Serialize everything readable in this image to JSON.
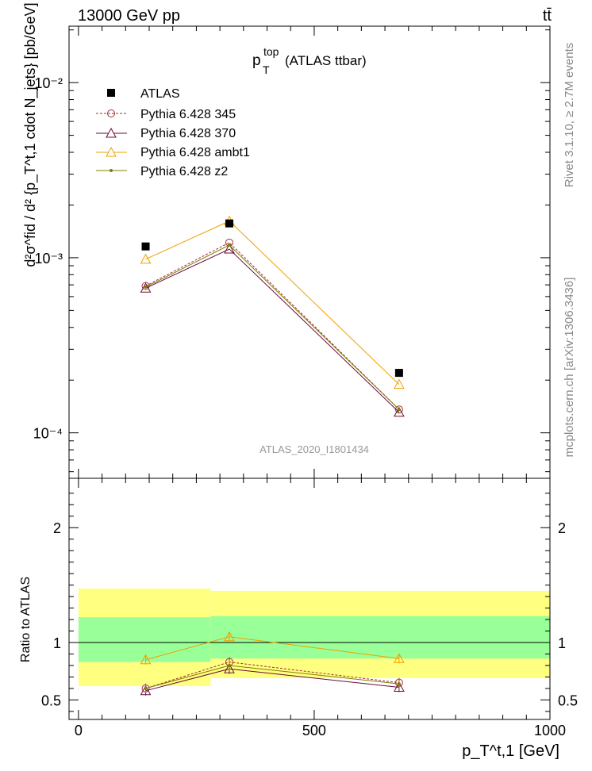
{
  "header": {
    "beam": "13000 GeV pp",
    "process": "tt̄",
    "side_rivet": "Rivet 3.1.10, ≥ 2.7M events",
    "side_site": "mcplots.cern.ch [arXiv:1306.3436]",
    "analysis": "ATLAS_2020_I1801434"
  },
  "colors": {
    "ATLAS": "#000000",
    "p345": "#a0303a",
    "p370": "#6b0a3a",
    "ambt1": "#f0a000",
    "z2": "#808000",
    "band_inner": "#99ff99",
    "band_outer": "#ffff80"
  },
  "chart_data": [
    {
      "type": "scatter",
      "title": "p_T^top (ATLAS ttbar)",
      "title_main": "p",
      "title_sub": "T",
      "title_sup": "top",
      "title_rest": "(ATLAS ttbar)",
      "ylabel": "d²σ^fid / d² {p_T^t,1 cdot N_jets} [pb/GeV]",
      "yscale": "log",
      "ylim": [
        5.5e-05,
        0.021
      ],
      "xlim": [
        -20,
        1000
      ],
      "x": [
        142.5,
        320,
        680
      ],
      "series": [
        {
          "name": "ATLAS",
          "values": [
            0.00116,
            0.00157,
            0.00022
          ]
        },
        {
          "name": "Pythia 6.428 345",
          "values": [
            0.00069,
            0.00122,
            0.000136
          ]
        },
        {
          "name": "Pythia 6.428 370",
          "values": [
            0.00067,
            0.00112,
            0.000131
          ]
        },
        {
          "name": "Pythia 6.428 ambt1",
          "values": [
            0.00098,
            0.00162,
            0.000189
          ]
        },
        {
          "name": "Pythia 6.428 z2",
          "values": [
            0.00068,
            0.00118,
            0.000136
          ]
        }
      ],
      "y_tick_labels": [
        "10⁻⁴",
        "10⁻³",
        "10⁻²"
      ],
      "legend": "top-left"
    },
    {
      "type": "line",
      "ylabel": "Ratio to ATLAS",
      "xlabel": "p_T^t,1 [GeV]",
      "ylim": [
        0.33,
        2.43
      ],
      "xlim": [
        -20,
        1000
      ],
      "x_ticks": [
        0,
        500,
        1000
      ],
      "y_ticks": [
        0.5,
        1,
        2
      ],
      "x": [
        142.5,
        320,
        680
      ],
      "bins": [
        [
          0,
          280
        ],
        [
          280,
          1000
        ]
      ],
      "band_inner": [
        [
          0.83,
          1.22
        ],
        [
          0.86,
          1.23
        ]
      ],
      "band_outer": [
        [
          0.62,
          1.47
        ],
        [
          0.69,
          1.45
        ]
      ],
      "series": [
        {
          "name": "Pythia 6.428 345",
          "values": [
            0.6,
            0.83,
            0.65
          ]
        },
        {
          "name": "Pythia 6.428 370",
          "values": [
            0.58,
            0.77,
            0.61
          ]
        },
        {
          "name": "Pythia 6.428 ambt1",
          "values": [
            0.85,
            1.05,
            0.86
          ]
        },
        {
          "name": "Pythia 6.428 z2",
          "values": [
            0.6,
            0.8,
            0.64
          ]
        }
      ]
    }
  ]
}
